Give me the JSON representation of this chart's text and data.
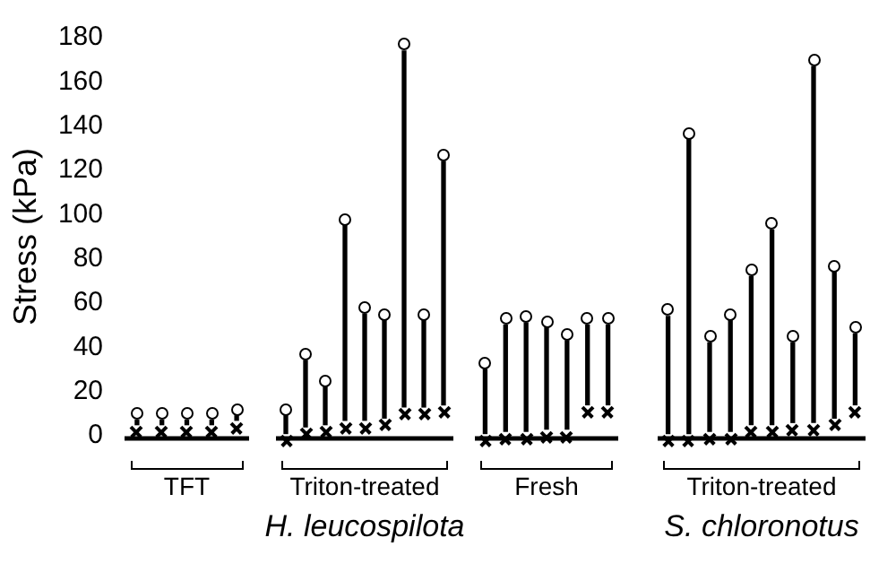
{
  "chart_data": [
    {
      "type": "bar",
      "ylabel": "Stress (kPa)",
      "xlabel": "TFT",
      "categories": [
        null,
        null,
        null,
        null,
        null
      ],
      "series": [
        {
          "type": "bar",
          "marker": "circle",
          "color": "#000000",
          "base": [
            5,
            5,
            5,
            5,
            7
          ],
          "values": [
            2,
            2,
            2,
            2,
            2
          ]
        }
      ],
      "ylim": [
        0,
        180
      ],
      "yticks": [
        0,
        20,
        40,
        60,
        80,
        100,
        120,
        140,
        160,
        180
      ],
      "grid": false,
      "legend": false,
      "tick_labels": "y"
    },
    {
      "type": "bar",
      "xlabel": "Triton-treated",
      "categories": [
        null,
        null,
        null,
        null,
        null,
        null,
        null,
        null,
        null
      ],
      "series": [
        {
          "type": "bar",
          "marker": "circle",
          "color": "#000000",
          "base": [
            1,
            4,
            5,
            7,
            7,
            8,
            13,
            13,
            14
          ],
          "values": [
            8,
            30,
            17,
            88,
            48,
            44,
            161,
            39,
            110
          ]
        }
      ],
      "ylim": [
        0,
        180
      ],
      "grid": false,
      "legend": false,
      "tick_labels": false,
      "annotations": [
        "H. leucospilota"
      ]
    },
    {
      "type": "bar",
      "xlabel": "Fresh",
      "categories": [
        null,
        null,
        null,
        null,
        null,
        null,
        null
      ],
      "series": [
        {
          "type": "bar",
          "marker": "circle",
          "color": "#000000",
          "base": [
            1,
            2,
            2,
            3,
            3,
            14,
            14
          ],
          "values": [
            29,
            48,
            49,
            46,
            40,
            36,
            36
          ]
        }
      ],
      "ylim": [
        0,
        180
      ],
      "grid": false,
      "legend": false,
      "tick_labels": false
    },
    {
      "type": "bar",
      "xlabel": "Triton-treated",
      "categories": [
        null,
        null,
        null,
        null,
        null,
        null,
        null,
        null,
        null,
        null
      ],
      "series": [
        {
          "type": "bar",
          "marker": "circle",
          "color": "#000000",
          "base": [
            1,
            1,
            2,
            2,
            5,
            5,
            6,
            6,
            8,
            14
          ],
          "values": [
            53,
            133,
            40,
            50,
            67,
            88,
            36,
            161,
            66,
            32
          ]
        }
      ],
      "ylim": [
        0,
        180
      ],
      "grid": false,
      "legend": false,
      "tick_labels": false,
      "annotations": [
        "S. chloronotus"
      ]
    }
  ]
}
